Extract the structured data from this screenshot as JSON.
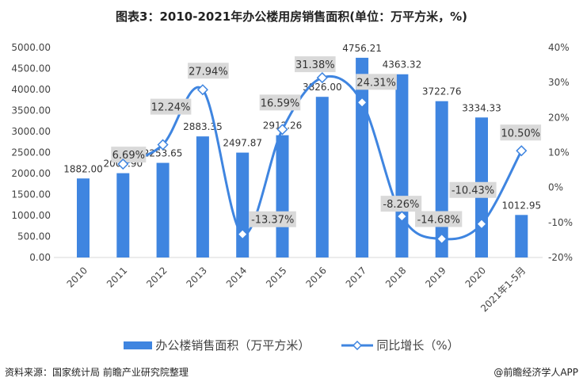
{
  "chart_data": {
    "type": "bar+line",
    "title": "图表3：2010-2021年办公楼用房销售面积(单位：万平方米，%)",
    "categories": [
      "2010",
      "2011",
      "2012",
      "2013",
      "2014",
      "2015",
      "2016",
      "2017",
      "2018",
      "2019",
      "2020",
      "2021年1-5月"
    ],
    "series": [
      {
        "name": "办公楼销售面积（万平方米）",
        "type": "bar",
        "axis": "left",
        "color": "#3f85e0",
        "values": [
          1882.0,
          2007.9,
          2253.65,
          2883.35,
          2497.87,
          2912.26,
          3826.0,
          4756.21,
          4363.32,
          3722.76,
          3334.33,
          1012.95
        ],
        "labels": [
          "1882.00",
          "2007.90",
          "2253.65",
          "2883.35",
          "2497.87",
          "2912.26",
          "3826.00",
          "4756.21",
          "4363.32",
          "3722.76",
          "3334.33",
          "1012.95"
        ]
      },
      {
        "name": "同比增长（%）",
        "type": "line",
        "axis": "right",
        "color": "#3f85e0",
        "values": [
          null,
          6.69,
          12.24,
          27.94,
          -13.37,
          16.59,
          31.38,
          24.31,
          -8.26,
          -14.68,
          -10.43,
          10.5
        ],
        "labels": [
          "",
          "6.69%",
          "12.24%",
          "27.94%",
          "-13.37%",
          "16.59%",
          "31.38%",
          "24.31%",
          "-8.26%",
          "-14.68%",
          "-10.43%",
          "10.50%"
        ]
      }
    ],
    "y_left": {
      "lim": [
        0,
        5000
      ],
      "ticks": [
        "0.00",
        "500.00",
        "1000.00",
        "1500.00",
        "2000.00",
        "2500.00",
        "3000.00",
        "3500.00",
        "4000.00",
        "4500.00",
        "5000.00"
      ]
    },
    "y_right": {
      "lim": [
        -20,
        40
      ],
      "ticks": [
        "-20%",
        "-10%",
        "0%",
        "10%",
        "20%",
        "30%",
        "40%"
      ]
    },
    "grid": false,
    "legend_position": "bottom"
  },
  "source": "资料来源：国家统计局 前瞻产业研究院整理",
  "credit": "@前瞻经济学人APP"
}
